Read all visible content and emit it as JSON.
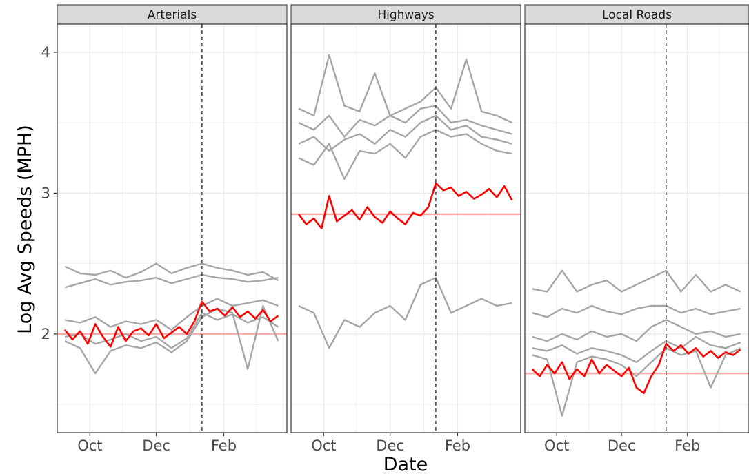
{
  "chart_data": {
    "type": "line",
    "xlabel": "Date",
    "ylabel": "Log Avg Speeds (MPH)",
    "ylim": [
      1.3,
      4.2
    ],
    "yticks": [
      2,
      3,
      4
    ],
    "x_tick_labels": [
      "Oct",
      "Dec",
      "Feb"
    ],
    "x_ticks": [
      "2019-10-01",
      "2019-12-01",
      "2020-02-01"
    ],
    "xlim": [
      "2019-09-01",
      "2020-03-30"
    ],
    "grid": true,
    "legend": "none",
    "vline": {
      "x": "2020-01-12",
      "style": "dashed",
      "color": "#333333"
    },
    "colors": {
      "highlight": "#ff0000",
      "reference": "#ff9999",
      "other": "#a6a6a6",
      "strip_fill": "#d9d9d9",
      "grid": "#ebebeb"
    },
    "panels": [
      {
        "title": "Arterials",
        "reference_level": 2.0,
        "highlight": {
          "x": [
            "2019-09-08",
            "2019-09-15",
            "2019-09-22",
            "2019-09-29",
            "2019-10-06",
            "2019-10-13",
            "2019-10-20",
            "2019-10-27",
            "2019-11-03",
            "2019-11-10",
            "2019-11-17",
            "2019-11-24",
            "2019-12-01",
            "2019-12-08",
            "2019-12-15",
            "2019-12-22",
            "2019-12-29",
            "2020-01-05",
            "2020-01-12",
            "2020-01-19",
            "2020-01-26",
            "2020-02-02",
            "2020-02-09",
            "2020-02-16",
            "2020-02-23",
            "2020-03-01",
            "2020-03-08",
            "2020-03-15",
            "2020-03-22"
          ],
          "values": [
            2.03,
            1.96,
            2.02,
            1.93,
            2.07,
            1.98,
            1.91,
            2.05,
            1.95,
            2.02,
            2.04,
            1.99,
            2.07,
            1.97,
            2.01,
            2.05,
            2.0,
            2.09,
            2.23,
            2.16,
            2.18,
            2.13,
            2.19,
            2.12,
            2.16,
            2.11,
            2.17,
            2.09,
            2.13
          ]
        },
        "others": [
          {
            "x": [
              "2019-09-08",
              "2019-09-22",
              "2019-10-06",
              "2019-10-20",
              "2019-11-03",
              "2019-11-17",
              "2019-12-01",
              "2019-12-15",
              "2019-12-29",
              "2020-01-12",
              "2020-01-26",
              "2020-02-09",
              "2020-02-23",
              "2020-03-08",
              "2020-03-22"
            ],
            "values": [
              2.48,
              2.43,
              2.42,
              2.45,
              2.4,
              2.44,
              2.5,
              2.43,
              2.47,
              2.5,
              2.47,
              2.45,
              2.42,
              2.44,
              2.38
            ]
          },
          {
            "x": [
              "2019-09-08",
              "2019-09-22",
              "2019-10-06",
              "2019-10-20",
              "2019-11-03",
              "2019-11-17",
              "2019-12-01",
              "2019-12-15",
              "2019-12-29",
              "2020-01-12",
              "2020-01-26",
              "2020-02-09",
              "2020-02-23",
              "2020-03-08",
              "2020-03-22"
            ],
            "values": [
              2.33,
              2.36,
              2.39,
              2.35,
              2.37,
              2.38,
              2.4,
              2.36,
              2.39,
              2.42,
              2.4,
              2.39,
              2.37,
              2.38,
              2.4
            ]
          },
          {
            "x": [
              "2019-09-08",
              "2019-09-22",
              "2019-10-06",
              "2019-10-20",
              "2019-11-03",
              "2019-11-17",
              "2019-12-01",
              "2019-12-15",
              "2019-12-29",
              "2020-01-12",
              "2020-01-26",
              "2020-02-09",
              "2020-02-23",
              "2020-03-08",
              "2020-03-22"
            ],
            "values": [
              2.1,
              2.08,
              2.12,
              2.05,
              2.09,
              2.07,
              2.1,
              2.03,
              2.12,
              2.2,
              2.25,
              2.2,
              2.22,
              2.24,
              2.2
            ]
          },
          {
            "x": [
              "2019-09-08",
              "2019-09-22",
              "2019-10-06",
              "2019-10-20",
              "2019-11-03",
              "2019-11-17",
              "2019-12-01",
              "2019-12-15",
              "2019-12-29",
              "2020-01-12",
              "2020-01-26",
              "2020-02-09",
              "2020-02-23",
              "2020-03-08",
              "2020-03-22"
            ],
            "values": [
              1.98,
              2.0,
              1.93,
              1.96,
              2.0,
              1.95,
              1.98,
              1.9,
              1.97,
              2.15,
              2.1,
              2.14,
              2.08,
              2.12,
              2.05
            ]
          },
          {
            "x": [
              "2019-09-08",
              "2019-09-22",
              "2019-10-06",
              "2019-10-20",
              "2019-11-03",
              "2019-11-17",
              "2019-12-01",
              "2019-12-15",
              "2019-12-29",
              "2020-01-12",
              "2020-01-26",
              "2020-02-09",
              "2020-02-23",
              "2020-03-08",
              "2020-03-22"
            ],
            "values": [
              1.95,
              1.9,
              1.72,
              1.88,
              1.92,
              1.9,
              1.94,
              1.87,
              1.95,
              2.12,
              2.18,
              2.15,
              1.75,
              2.2,
              1.95
            ]
          }
        ]
      },
      {
        "title": "Highways",
        "reference_level": 2.85,
        "highlight": {
          "x": [
            "2019-09-08",
            "2019-09-15",
            "2019-09-22",
            "2019-09-29",
            "2019-10-06",
            "2019-10-13",
            "2019-10-20",
            "2019-10-27",
            "2019-11-03",
            "2019-11-10",
            "2019-11-17",
            "2019-11-24",
            "2019-12-01",
            "2019-12-08",
            "2019-12-15",
            "2019-12-22",
            "2019-12-29",
            "2020-01-05",
            "2020-01-12",
            "2020-01-19",
            "2020-01-26",
            "2020-02-02",
            "2020-02-09",
            "2020-02-16",
            "2020-02-23",
            "2020-03-01",
            "2020-03-08",
            "2020-03-15",
            "2020-03-22"
          ],
          "values": [
            2.85,
            2.78,
            2.82,
            2.75,
            2.98,
            2.8,
            2.84,
            2.88,
            2.81,
            2.9,
            2.83,
            2.79,
            2.87,
            2.82,
            2.78,
            2.86,
            2.84,
            2.9,
            3.07,
            3.02,
            3.04,
            2.98,
            3.01,
            2.96,
            2.99,
            3.03,
            2.97,
            3.05,
            2.95
          ]
        },
        "others": [
          {
            "x": [
              "2019-09-08",
              "2019-09-22",
              "2019-10-06",
              "2019-10-20",
              "2019-11-03",
              "2019-11-17",
              "2019-12-01",
              "2019-12-15",
              "2019-12-29",
              "2020-01-12",
              "2020-01-26",
              "2020-02-09",
              "2020-02-23",
              "2020-03-08",
              "2020-03-22"
            ],
            "values": [
              3.6,
              3.55,
              3.98,
              3.62,
              3.58,
              3.85,
              3.55,
              3.6,
              3.65,
              3.75,
              3.6,
              3.95,
              3.58,
              3.55,
              3.5
            ]
          },
          {
            "x": [
              "2019-09-08",
              "2019-09-22",
              "2019-10-06",
              "2019-10-20",
              "2019-11-03",
              "2019-11-17",
              "2019-12-01",
              "2019-12-15",
              "2019-12-29",
              "2020-01-12",
              "2020-01-26",
              "2020-02-09",
              "2020-02-23",
              "2020-03-08",
              "2020-03-22"
            ],
            "values": [
              3.5,
              3.45,
              3.55,
              3.4,
              3.52,
              3.48,
              3.55,
              3.5,
              3.6,
              3.62,
              3.5,
              3.52,
              3.48,
              3.45,
              3.42
            ]
          },
          {
            "x": [
              "2019-09-08",
              "2019-09-22",
              "2019-10-06",
              "2019-10-20",
              "2019-11-03",
              "2019-11-17",
              "2019-12-01",
              "2019-12-15",
              "2019-12-29",
              "2020-01-12",
              "2020-01-26",
              "2020-02-09",
              "2020-02-23",
              "2020-03-08",
              "2020-03-22"
            ],
            "values": [
              3.35,
              3.4,
              3.3,
              3.38,
              3.42,
              3.35,
              3.45,
              3.4,
              3.5,
              3.55,
              3.45,
              3.48,
              3.4,
              3.38,
              3.35
            ]
          },
          {
            "x": [
              "2019-09-08",
              "2019-09-22",
              "2019-10-06",
              "2019-10-20",
              "2019-11-03",
              "2019-11-17",
              "2019-12-01",
              "2019-12-15",
              "2019-12-29",
              "2020-01-12",
              "2020-01-26",
              "2020-02-09",
              "2020-02-23",
              "2020-03-08",
              "2020-03-22"
            ],
            "values": [
              3.25,
              3.2,
              3.35,
              3.1,
              3.3,
              3.28,
              3.35,
              3.25,
              3.4,
              3.45,
              3.4,
              3.42,
              3.35,
              3.3,
              3.28
            ]
          },
          {
            "x": [
              "2019-09-08",
              "2019-09-22",
              "2019-10-06",
              "2019-10-20",
              "2019-11-03",
              "2019-11-17",
              "2019-12-01",
              "2019-12-15",
              "2019-12-29",
              "2020-01-12",
              "2020-01-26",
              "2020-02-09",
              "2020-02-23",
              "2020-03-08",
              "2020-03-22"
            ],
            "values": [
              2.2,
              2.15,
              1.9,
              2.1,
              2.05,
              2.15,
              2.2,
              2.1,
              2.35,
              2.4,
              2.15,
              2.2,
              2.25,
              2.2,
              2.22
            ]
          }
        ]
      },
      {
        "title": "Local Roads",
        "reference_level": 1.72,
        "highlight": {
          "x": [
            "2019-09-08",
            "2019-09-15",
            "2019-09-22",
            "2019-09-29",
            "2019-10-06",
            "2019-10-13",
            "2019-10-20",
            "2019-10-27",
            "2019-11-03",
            "2019-11-10",
            "2019-11-17",
            "2019-11-24",
            "2019-12-01",
            "2019-12-08",
            "2019-12-15",
            "2019-12-22",
            "2019-12-29",
            "2020-01-05",
            "2020-01-12",
            "2020-01-19",
            "2020-01-26",
            "2020-02-02",
            "2020-02-09",
            "2020-02-16",
            "2020-02-23",
            "2020-03-01",
            "2020-03-08",
            "2020-03-15",
            "2020-03-22"
          ],
          "values": [
            1.75,
            1.7,
            1.78,
            1.72,
            1.8,
            1.68,
            1.75,
            1.7,
            1.82,
            1.72,
            1.78,
            1.74,
            1.7,
            1.76,
            1.62,
            1.58,
            1.7,
            1.78,
            1.93,
            1.88,
            1.92,
            1.86,
            1.9,
            1.84,
            1.88,
            1.83,
            1.87,
            1.85,
            1.89
          ]
        },
        "others": [
          {
            "x": [
              "2019-09-08",
              "2019-09-22",
              "2019-10-06",
              "2019-10-20",
              "2019-11-03",
              "2019-11-17",
              "2019-12-01",
              "2019-12-15",
              "2019-12-29",
              "2020-01-12",
              "2020-01-26",
              "2020-02-09",
              "2020-02-23",
              "2020-03-08",
              "2020-03-22"
            ],
            "values": [
              2.32,
              2.3,
              2.45,
              2.3,
              2.35,
              2.38,
              2.3,
              2.35,
              2.4,
              2.45,
              2.3,
              2.42,
              2.3,
              2.35,
              2.3
            ]
          },
          {
            "x": [
              "2019-09-08",
              "2019-09-22",
              "2019-10-06",
              "2019-10-20",
              "2019-11-03",
              "2019-11-17",
              "2019-12-01",
              "2019-12-15",
              "2019-12-29",
              "2020-01-12",
              "2020-01-26",
              "2020-02-09",
              "2020-02-23",
              "2020-03-08",
              "2020-03-22"
            ],
            "values": [
              2.15,
              2.12,
              2.18,
              2.15,
              2.2,
              2.16,
              2.14,
              2.18,
              2.2,
              2.2,
              2.15,
              2.18,
              2.14,
              2.16,
              2.18
            ]
          },
          {
            "x": [
              "2019-09-08",
              "2019-09-22",
              "2019-10-06",
              "2019-10-20",
              "2019-11-03",
              "2019-11-17",
              "2019-12-01",
              "2019-12-15",
              "2019-12-29",
              "2020-01-12",
              "2020-01-26",
              "2020-02-09",
              "2020-02-23",
              "2020-03-08",
              "2020-03-22"
            ],
            "values": [
              1.98,
              1.95,
              2.0,
              1.96,
              2.02,
              1.98,
              2.0,
              1.95,
              2.05,
              2.1,
              2.05,
              2.0,
              2.02,
              1.98,
              2.0
            ]
          },
          {
            "x": [
              "2019-09-08",
              "2019-09-22",
              "2019-10-06",
              "2019-10-20",
              "2019-11-03",
              "2019-11-17",
              "2019-12-01",
              "2019-12-15",
              "2019-12-29",
              "2020-01-12",
              "2020-01-26",
              "2020-02-09",
              "2020-02-23",
              "2020-03-08",
              "2020-03-22"
            ],
            "values": [
              1.9,
              1.88,
              1.92,
              1.86,
              1.9,
              1.88,
              1.85,
              1.8,
              1.88,
              1.95,
              1.9,
              1.98,
              1.92,
              1.9,
              1.94
            ]
          },
          {
            "x": [
              "2019-09-08",
              "2019-09-22",
              "2019-10-06",
              "2019-10-20",
              "2019-11-03",
              "2019-11-17",
              "2019-12-01",
              "2019-12-15",
              "2019-12-29",
              "2020-01-12",
              "2020-01-26",
              "2020-02-09",
              "2020-02-23",
              "2020-03-08",
              "2020-03-22"
            ],
            "values": [
              1.85,
              1.82,
              1.42,
              1.8,
              1.84,
              1.82,
              1.78,
              1.7,
              1.8,
              1.9,
              1.85,
              1.88,
              1.62,
              1.85,
              1.9
            ]
          }
        ]
      }
    ]
  }
}
